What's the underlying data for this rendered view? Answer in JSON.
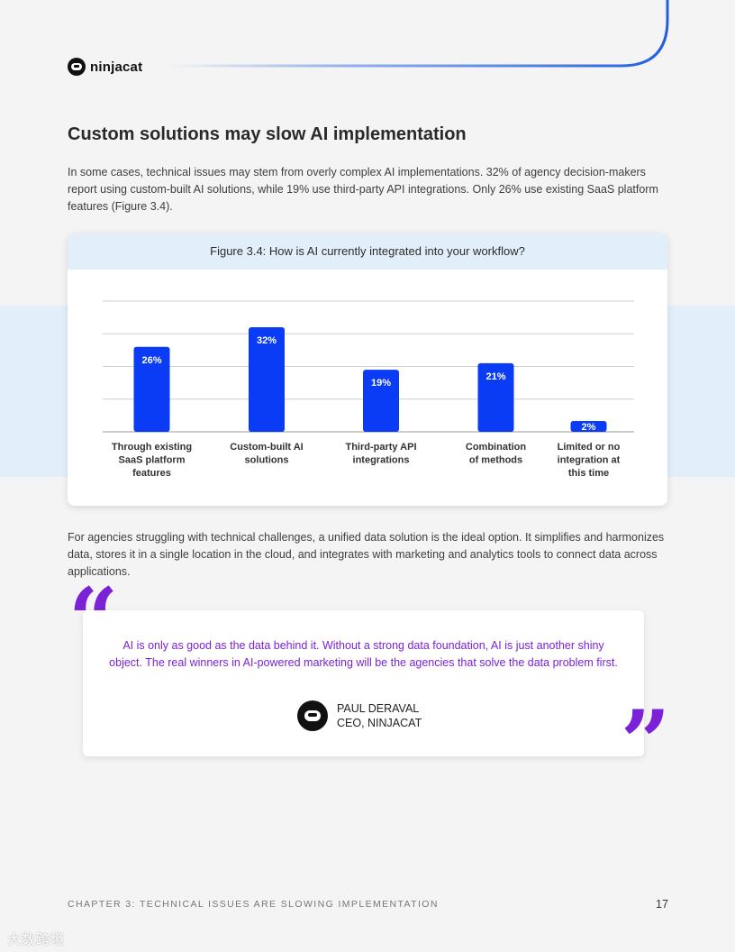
{
  "brand": {
    "name": "ninjacat"
  },
  "heading": "Custom solutions may slow AI implementation",
  "intro": "In some cases, technical issues may stem from overly complex AI implementations. 32% of agency decision-makers report using custom-built AI solutions, while 19% use third-party API integrations. Only 26% use existing SaaS platform features (Figure 3.4).",
  "figure": {
    "caption": "Figure 3.4: How is AI currently integrated into your workflow?"
  },
  "chart_data": {
    "type": "bar",
    "categories": [
      [
        "Through existing",
        "SaaS platform",
        "features"
      ],
      [
        "Custom-built AI",
        "solutions"
      ],
      [
        "Third-party API",
        "integrations"
      ],
      [
        "Combination",
        "of methods"
      ],
      [
        "Limited or no",
        "integration at",
        "this time"
      ]
    ],
    "values": [
      26,
      32,
      19,
      21,
      2
    ],
    "data_labels": [
      "26%",
      "32%",
      "19%",
      "21%",
      "2%"
    ],
    "ylim": [
      0,
      40
    ],
    "grid": true,
    "bar_color": "#0a3cf5"
  },
  "body2": "For agencies struggling with technical challenges, a unified data solution is the ideal option. It simplifies and harmonizes data, stores it in a single location in the cloud, and integrates with marketing and analytics tools to connect data across applications.",
  "quote": {
    "open_mark": "“",
    "close_mark": "”",
    "text": "AI is only as good as the data behind it. Without a strong data foundation, AI is just another shiny object. The real winners in AI-powered marketing will be the agencies that solve the data problem first.",
    "author_name": "PAUL DERAVAL",
    "author_title": "CEO, NINJACAT"
  },
  "footer": {
    "chapter": "CHAPTER 3: TECHNICAL ISSUES ARE SLOWING IMPLEMENTATION",
    "page": "17"
  },
  "watermark": "大数跨境",
  "colors": {
    "accent_blue": "#1f5fe0",
    "quote_purple": "#7b22d8",
    "band": "#e2effb"
  }
}
